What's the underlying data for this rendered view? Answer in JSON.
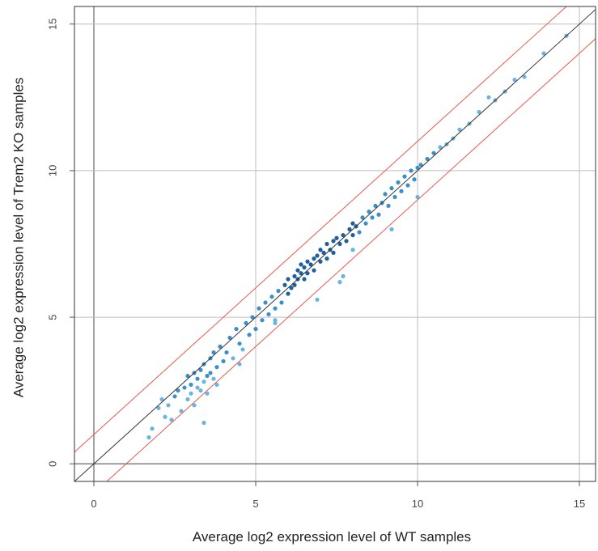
{
  "chart_data": {
    "type": "scatter",
    "xlabel": "Average log2 expression level of WT samples",
    "ylabel": "Average log2 expression level of Trem2 KO samples",
    "xlim": [
      -0.6,
      15.5
    ],
    "ylim": [
      -0.6,
      15.6
    ],
    "xticks": [
      "0",
      "5",
      "10",
      "15"
    ],
    "yticks": [
      "0",
      "5",
      "10",
      "15"
    ],
    "grid": true,
    "colors": {
      "diagonal": "#333333",
      "fold_lines": "#e85a4f",
      "axis_lines": "#666666",
      "grid": "#bdbdbd",
      "points_light": "#6db3e0",
      "points_mid": "#3a8fcb",
      "points_dark": "#1f5f9e"
    },
    "reference_lines": [
      {
        "kind": "identity",
        "slope": 1,
        "intercept": 0
      },
      {
        "kind": "upper-bound",
        "slope": 1,
        "intercept": 1
      },
      {
        "kind": "lower-bound",
        "slope": 1,
        "intercept": -1
      }
    ],
    "points": [
      [
        1.7,
        0.9
      ],
      [
        1.8,
        1.2
      ],
      [
        2.0,
        1.9
      ],
      [
        2.1,
        2.2
      ],
      [
        2.2,
        1.6
      ],
      [
        2.3,
        2.0
      ],
      [
        2.4,
        1.5
      ],
      [
        2.5,
        2.3
      ],
      [
        2.6,
        2.5
      ],
      [
        2.7,
        1.8
      ],
      [
        2.8,
        2.6
      ],
      [
        2.9,
        2.2
      ],
      [
        2.9,
        3.0
      ],
      [
        3.0,
        2.7
      ],
      [
        3.0,
        2.4
      ],
      [
        3.1,
        3.1
      ],
      [
        3.1,
        2.0
      ],
      [
        3.2,
        2.9
      ],
      [
        3.2,
        2.6
      ],
      [
        3.3,
        3.2
      ],
      [
        3.3,
        2.5
      ],
      [
        3.4,
        2.8
      ],
      [
        3.4,
        3.4
      ],
      [
        3.5,
        3.0
      ],
      [
        3.5,
        2.4
      ],
      [
        3.6,
        3.6
      ],
      [
        3.6,
        3.1
      ],
      [
        3.7,
        2.9
      ],
      [
        3.7,
        3.8
      ],
      [
        3.8,
        3.3
      ],
      [
        3.8,
        2.7
      ],
      [
        3.9,
        4.0
      ],
      [
        4.0,
        3.5
      ],
      [
        4.1,
        3.8
      ],
      [
        4.2,
        4.3
      ],
      [
        4.3,
        3.6
      ],
      [
        4.4,
        4.6
      ],
      [
        4.5,
        4.1
      ],
      [
        4.6,
        3.9
      ],
      [
        4.7,
        4.8
      ],
      [
        4.8,
        4.4
      ],
      [
        4.9,
        5.0
      ],
      [
        5.0,
        4.6
      ],
      [
        5.1,
        5.3
      ],
      [
        5.2,
        4.9
      ],
      [
        5.3,
        5.5
      ],
      [
        5.4,
        5.1
      ],
      [
        5.5,
        5.7
      ],
      [
        5.6,
        5.3
      ],
      [
        5.6,
        4.8
      ],
      [
        5.7,
        5.9
      ],
      [
        5.8,
        5.5
      ],
      [
        5.9,
        6.1
      ],
      [
        6.0,
        5.8
      ],
      [
        6.0,
        6.3
      ],
      [
        6.1,
        6.0
      ],
      [
        6.2,
        6.4
      ],
      [
        6.2,
        6.1
      ],
      [
        6.3,
        6.6
      ],
      [
        6.3,
        6.3
      ],
      [
        6.4,
        6.5
      ],
      [
        6.4,
        6.8
      ],
      [
        6.5,
        6.3
      ],
      [
        6.5,
        6.7
      ],
      [
        6.6,
        6.9
      ],
      [
        6.6,
        6.5
      ],
      [
        6.7,
        6.8
      ],
      [
        6.8,
        7.0
      ],
      [
        6.8,
        6.6
      ],
      [
        6.9,
        7.1
      ],
      [
        7.0,
        6.9
      ],
      [
        7.0,
        7.3
      ],
      [
        7.1,
        7.2
      ],
      [
        7.2,
        7.0
      ],
      [
        7.2,
        7.5
      ],
      [
        7.3,
        7.3
      ],
      [
        7.4,
        7.6
      ],
      [
        7.4,
        7.2
      ],
      [
        7.5,
        7.7
      ],
      [
        7.6,
        7.5
      ],
      [
        7.6,
        6.2
      ],
      [
        7.7,
        7.8
      ],
      [
        7.7,
        6.4
      ],
      [
        7.8,
        7.6
      ],
      [
        7.9,
        8.0
      ],
      [
        8.0,
        7.8
      ],
      [
        8.0,
        8.2
      ],
      [
        8.1,
        8.1
      ],
      [
        8.2,
        7.9
      ],
      [
        8.3,
        8.4
      ],
      [
        8.4,
        8.2
      ],
      [
        8.5,
        8.6
      ],
      [
        8.6,
        8.4
      ],
      [
        8.7,
        8.8
      ],
      [
        8.8,
        8.5
      ],
      [
        8.9,
        8.9
      ],
      [
        9.0,
        9.2
      ],
      [
        9.1,
        8.8
      ],
      [
        9.2,
        9.4
      ],
      [
        9.3,
        9.1
      ],
      [
        9.4,
        9.6
      ],
      [
        9.5,
        9.3
      ],
      [
        9.6,
        9.8
      ],
      [
        9.7,
        9.5
      ],
      [
        9.8,
        10.0
      ],
      [
        9.9,
        9.7
      ],
      [
        10.0,
        10.1
      ],
      [
        10.0,
        9.1
      ],
      [
        10.1,
        10.2
      ],
      [
        10.3,
        10.4
      ],
      [
        10.5,
        10.6
      ],
      [
        10.7,
        10.8
      ],
      [
        10.9,
        10.9
      ],
      [
        11.1,
        11.1
      ],
      [
        11.3,
        11.4
      ],
      [
        11.6,
        11.6
      ],
      [
        11.9,
        12.0
      ],
      [
        12.2,
        12.5
      ],
      [
        12.4,
        12.4
      ],
      [
        12.7,
        12.7
      ],
      [
        13.0,
        13.1
      ],
      [
        13.3,
        13.2
      ],
      [
        13.9,
        14.0
      ],
      [
        14.6,
        14.6
      ],
      [
        3.4,
        1.4
      ],
      [
        4.5,
        3.4
      ],
      [
        5.6,
        4.9
      ],
      [
        9.2,
        8.0
      ],
      [
        8.0,
        7.3
      ],
      [
        6.9,
        5.6
      ]
    ]
  }
}
